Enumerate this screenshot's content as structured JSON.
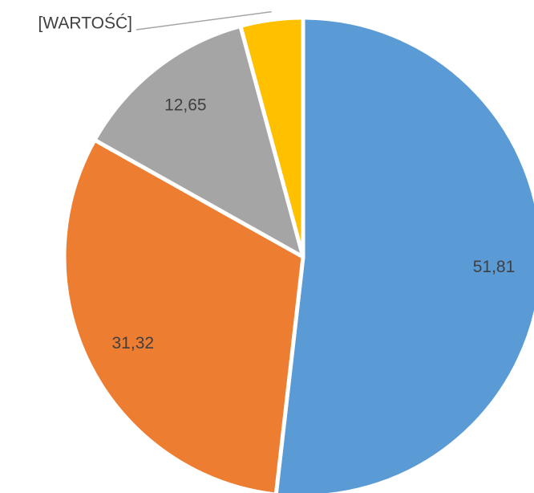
{
  "chart_data": {
    "type": "pie",
    "values": [
      51.81,
      31.32,
      12.65,
      4.22
    ],
    "value_labels": [
      "51,81",
      "31,32",
      "12,65",
      "[WARTOŚĆ]"
    ],
    "colors": [
      "#5b9bd5",
      "#ed7d31",
      "#a5a5a5",
      "#ffc000"
    ]
  }
}
